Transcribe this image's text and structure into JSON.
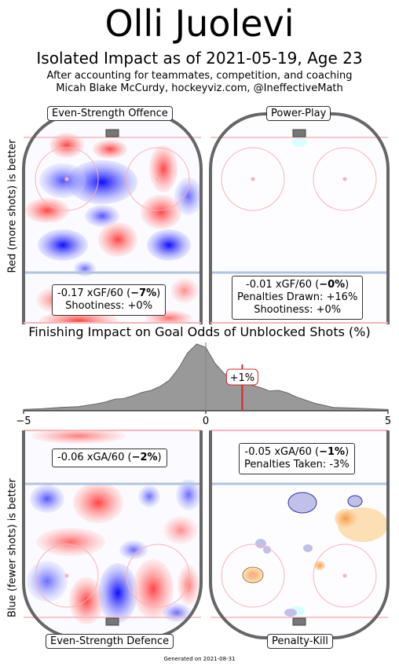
{
  "header": {
    "title": "Olli Juolevi",
    "subtitle": "Isolated Impact as of 2021-05-19, Age 23",
    "note1": "After accounting for teammates, competition, and coaching",
    "note2": "Micah Blake McCurdy, hockeyviz.com, @IneffectiveMath"
  },
  "axis_labels": {
    "top": "Red (more shots) is better",
    "bottom": "Blue (fewer shots) is better"
  },
  "panels": {
    "ev_off": {
      "label": "Even-Strength Offence",
      "line1_pre": "-0.17 xGF/60 (",
      "line1_bold": "−7%",
      "line1_post": ")",
      "line2": "Shootiness: +0%"
    },
    "pp": {
      "label": "Power-Play",
      "line1_pre": "-0.01 xGF/60 (",
      "line1_bold": "−0%",
      "line1_post": ")",
      "line2": "Penalties Drawn: +16%",
      "line3": "Shootiness: +0%"
    },
    "ev_def": {
      "label": "Even-Strength Defence",
      "line1_pre": "-0.06 xGA/60 (",
      "line1_bold": "−2%",
      "line1_post": ")"
    },
    "pk": {
      "label": "Penalty-Kill",
      "line1_pre": "-0.05 xGA/60 (",
      "line1_bold": "−1%",
      "line1_post": ")",
      "line2": "Penalties Taken: -3%"
    }
  },
  "colors": {
    "boards": "#666666",
    "red_line": "#f4b6bb",
    "blue_line": "#b0c4de",
    "faceoff": "#f7b3b3",
    "density_fill": "#999999",
    "marker": "#d62728",
    "pos": "#ff3333",
    "neg": "#3333ff",
    "pk": "#f5a040"
  },
  "chart_data": {
    "type": "area",
    "title": "Finishing Impact on Goal Odds of Unblocked Shots (%)",
    "xlim": [
      -5,
      5
    ],
    "xticks": [
      "−5",
      "0",
      "5"
    ],
    "marker_value": 1,
    "marker_label": "+1%",
    "x": [
      -5.0,
      -4.5,
      -4.0,
      -3.5,
      -3.0,
      -2.75,
      -2.5,
      -2.25,
      -2.0,
      -1.75,
      -1.5,
      -1.25,
      -1.0,
      -0.75,
      -0.5,
      -0.25,
      0.0,
      0.25,
      0.5,
      0.75,
      1.0,
      1.25,
      1.5,
      1.75,
      2.0,
      2.25,
      2.5,
      3.0,
      3.5,
      4.0,
      4.5,
      5.0
    ],
    "y": [
      0.02,
      0.03,
      0.05,
      0.06,
      0.1,
      0.13,
      0.17,
      0.18,
      0.22,
      0.27,
      0.3,
      0.36,
      0.45,
      0.62,
      0.85,
      0.98,
      0.93,
      0.7,
      0.55,
      0.46,
      0.42,
      0.38,
      0.34,
      0.29,
      0.3,
      0.26,
      0.2,
      0.11,
      0.05,
      0.04,
      0.03,
      0.02
    ]
  },
  "footer": "Generated on 2021-08-31"
}
